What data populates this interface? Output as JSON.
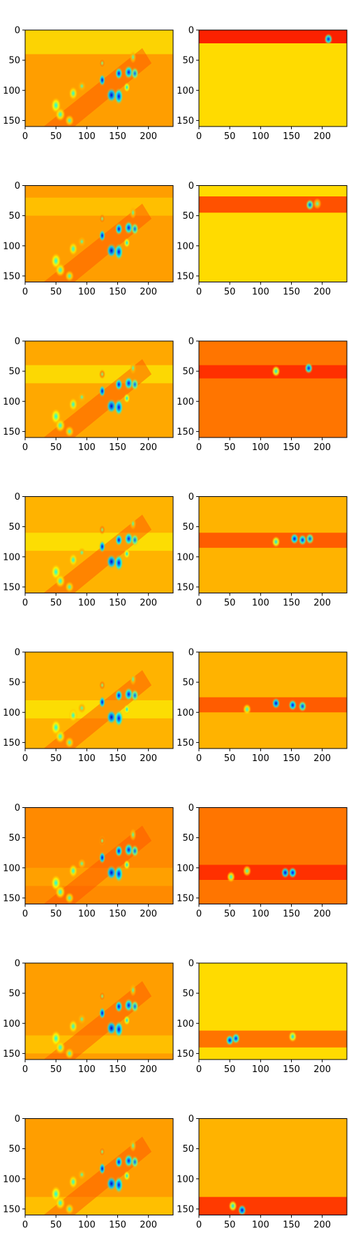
{
  "chart_data": {
    "type": "heatmap",
    "colormap": "jet",
    "grid": false,
    "legend": "none",
    "rows": 8,
    "columns": 2,
    "image_width": 240,
    "image_height": 160,
    "xlim": [
      0,
      240
    ],
    "ylim": [
      160,
      0
    ],
    "x_ticks": [
      0,
      50,
      100,
      150,
      200
    ],
    "y_ticks": [
      0,
      50,
      100,
      150
    ],
    "x_tick_labels": [
      "0",
      "50",
      "100",
      "150",
      "200"
    ],
    "y_tick_labels": [
      "0",
      "50",
      "100",
      "150"
    ],
    "title": "",
    "xlabel": "",
    "ylabel": "",
    "left_panels": [
      {
        "row": 1,
        "background_level": 0.72,
        "focus_band_y": [
          0,
          40
        ],
        "focus_level": 0.62
      },
      {
        "row": 2,
        "background_level": 0.72,
        "focus_band_y": [
          20,
          50
        ],
        "focus_level": 0.66
      },
      {
        "row": 3,
        "background_level": 0.71,
        "focus_band_y": [
          40,
          70
        ],
        "focus_level": 0.62
      },
      {
        "row": 4,
        "background_level": 0.7,
        "focus_band_y": [
          60,
          90
        ],
        "focus_level": 0.62
      },
      {
        "row": 5,
        "background_level": 0.7,
        "focus_band_y": [
          80,
          110
        ],
        "focus_level": 0.62
      },
      {
        "row": 6,
        "background_level": 0.74,
        "focus_band_y": [
          100,
          130
        ],
        "focus_level": 0.7
      },
      {
        "row": 7,
        "background_level": 0.72,
        "focus_band_y": [
          120,
          150
        ],
        "focus_level": 0.66
      },
      {
        "row": 8,
        "background_level": 0.72,
        "focus_band_y": [
          130,
          160
        ],
        "focus_level": 0.66
      }
    ],
    "left_hotspots": [
      {
        "x": 50,
        "y": 125,
        "value": 0.38,
        "rx": 6,
        "ry": 11
      },
      {
        "x": 57,
        "y": 140,
        "value": 0.4,
        "rx": 6,
        "ry": 9
      },
      {
        "x": 72,
        "y": 150,
        "value": 0.42,
        "rx": 5,
        "ry": 7
      },
      {
        "x": 78,
        "y": 105,
        "value": 0.4,
        "rx": 5,
        "ry": 9
      },
      {
        "x": 92,
        "y": 93,
        "value": 0.45,
        "rx": 4,
        "ry": 6
      },
      {
        "x": 125,
        "y": 83,
        "value": 0.1,
        "rx": 3,
        "ry": 8
      },
      {
        "x": 140,
        "y": 108,
        "value": 0.08,
        "rx": 6,
        "ry": 10
      },
      {
        "x": 152,
        "y": 110,
        "value": 0.12,
        "rx": 5,
        "ry": 12
      },
      {
        "x": 152,
        "y": 72,
        "value": 0.12,
        "rx": 4,
        "ry": 8
      },
      {
        "x": 168,
        "y": 70,
        "value": 0.14,
        "rx": 5,
        "ry": 9
      },
      {
        "x": 178,
        "y": 72,
        "value": 0.22,
        "rx": 4,
        "ry": 8
      },
      {
        "x": 165,
        "y": 95,
        "value": 0.35,
        "rx": 3,
        "ry": 6
      },
      {
        "x": 175,
        "y": 45,
        "value": 0.45,
        "rx": 3,
        "ry": 8
      },
      {
        "x": 125,
        "y": 55,
        "value": 0.5,
        "rx": 3,
        "ry": 6
      }
    ],
    "right_panels": [
      {
        "row": 1,
        "background_level": 0.66,
        "band_y": [
          0,
          22
        ],
        "band_level": 0.88,
        "spots": [
          {
            "x": 210,
            "y": 15,
            "value": 0.15
          }
        ]
      },
      {
        "row": 2,
        "background_level": 0.66,
        "band_y": [
          18,
          45
        ],
        "band_level": 0.82,
        "spots": [
          {
            "x": 180,
            "y": 32,
            "value": 0.2
          },
          {
            "x": 192,
            "y": 30,
            "value": 0.45
          }
        ]
      },
      {
        "row": 3,
        "background_level": 0.76,
        "band_y": [
          40,
          62
        ],
        "band_level": 0.84,
        "spots": [
          {
            "x": 125,
            "y": 50,
            "value": 0.35
          },
          {
            "x": 178,
            "y": 45,
            "value": 0.15
          }
        ]
      },
      {
        "row": 4,
        "background_level": 0.7,
        "band_y": [
          60,
          85
        ],
        "band_level": 0.8,
        "spots": [
          {
            "x": 125,
            "y": 75,
            "value": 0.35
          },
          {
            "x": 155,
            "y": 70,
            "value": 0.12
          },
          {
            "x": 168,
            "y": 72,
            "value": 0.15
          },
          {
            "x": 180,
            "y": 70,
            "value": 0.2
          }
        ]
      },
      {
        "row": 5,
        "background_level": 0.7,
        "band_y": [
          75,
          100
        ],
        "band_level": 0.8,
        "spots": [
          {
            "x": 78,
            "y": 95,
            "value": 0.4
          },
          {
            "x": 125,
            "y": 85,
            "value": 0.1
          },
          {
            "x": 152,
            "y": 88,
            "value": 0.12
          },
          {
            "x": 168,
            "y": 90,
            "value": 0.18
          }
        ]
      },
      {
        "row": 6,
        "background_level": 0.76,
        "band_y": [
          95,
          120
        ],
        "band_level": 0.84,
        "spots": [
          {
            "x": 52,
            "y": 115,
            "value": 0.4
          },
          {
            "x": 78,
            "y": 105,
            "value": 0.42
          },
          {
            "x": 140,
            "y": 108,
            "value": 0.1
          },
          {
            "x": 152,
            "y": 108,
            "value": 0.12
          }
        ]
      },
      {
        "row": 7,
        "background_level": 0.66,
        "band_y": [
          112,
          140
        ],
        "band_level": 0.78,
        "spots": [
          {
            "x": 50,
            "y": 128,
            "value": 0.12
          },
          {
            "x": 60,
            "y": 125,
            "value": 0.15
          },
          {
            "x": 152,
            "y": 122,
            "value": 0.35
          }
        ]
      },
      {
        "row": 8,
        "background_level": 0.7,
        "band_y": [
          130,
          160
        ],
        "band_level": 0.84,
        "spots": [
          {
            "x": 55,
            "y": 145,
            "value": 0.35
          },
          {
            "x": 70,
            "y": 152,
            "value": 0.1
          }
        ]
      }
    ]
  }
}
